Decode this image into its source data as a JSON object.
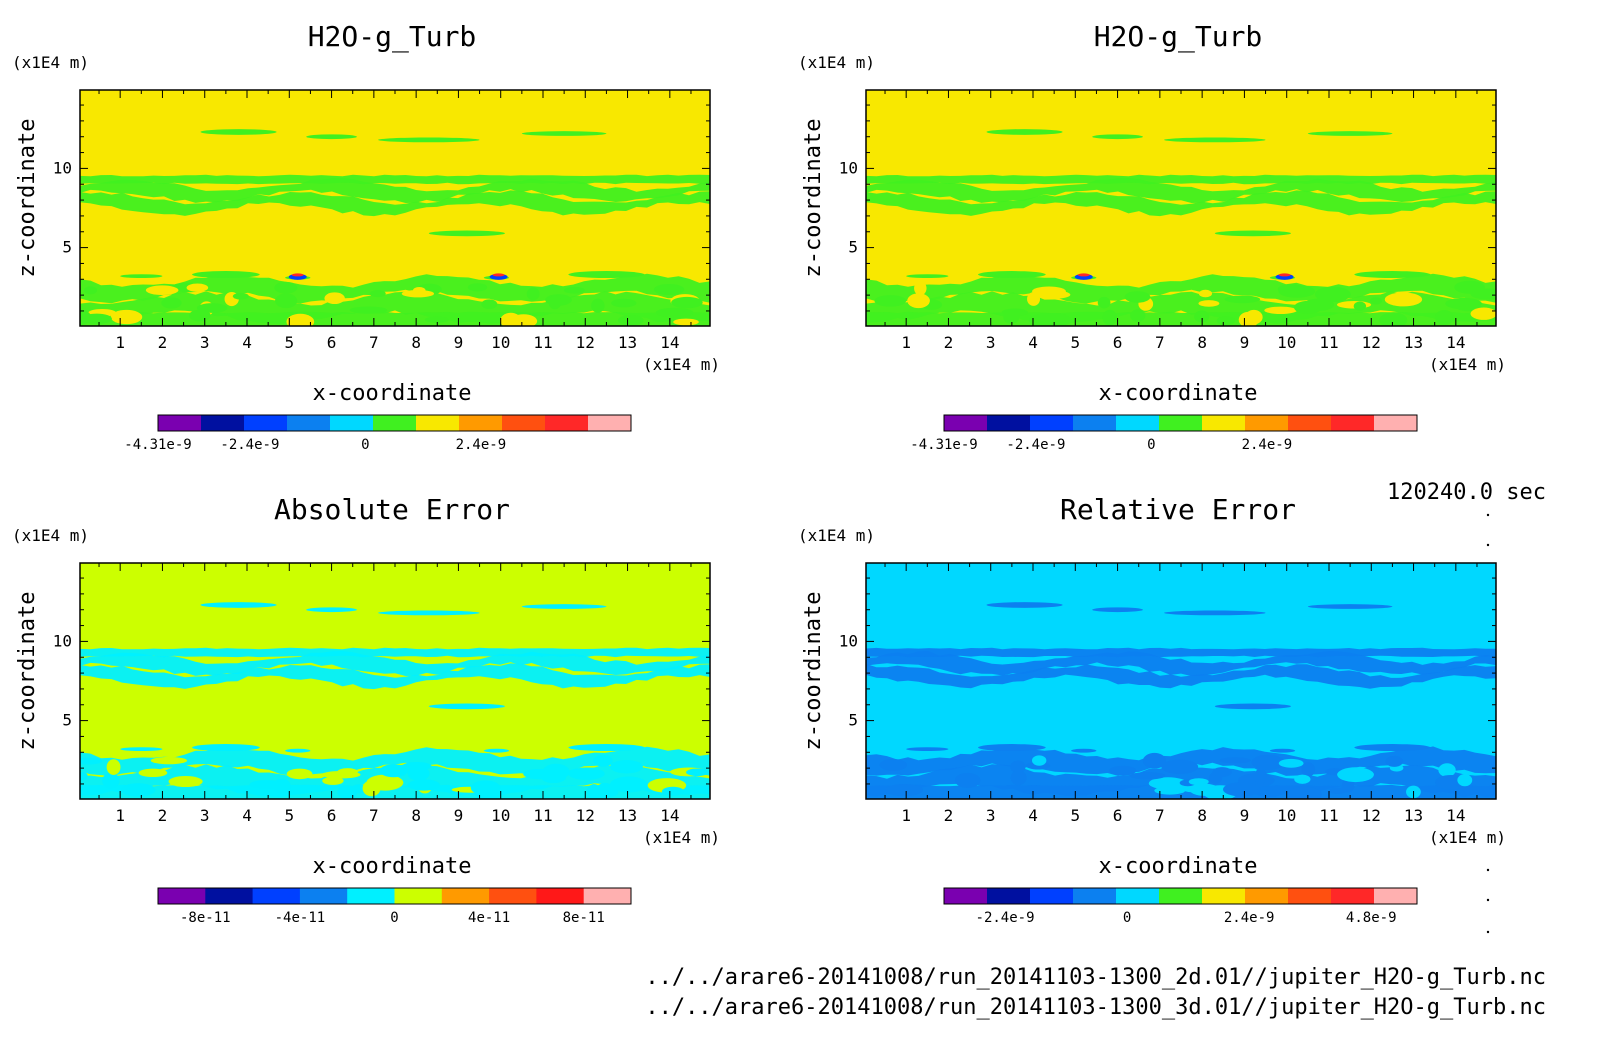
{
  "chart_data": [
    {
      "type": "heatmap",
      "title": "H2O-g_Turb",
      "xlabel": "x-coordinate",
      "ylabel": "z-coordinate",
      "x_unit": "(x1E4 m)",
      "y_unit": "(x1E4 m)",
      "xticks": [
        1,
        2,
        3,
        4,
        5,
        6,
        7,
        8,
        9,
        10,
        11,
        12,
        13,
        14
      ],
      "yticks": [
        5,
        10
      ],
      "xlim": [
        0.05,
        14.95
      ],
      "ylim": [
        0.05,
        14.95
      ],
      "background_level": "0",
      "colorbar": {
        "colors": [
          "#7a00b0",
          "#0010a0",
          "#0040ff",
          "#0c80f0",
          "#00d8ff",
          "#40f020",
          "#f8e800",
          "#ff9a00",
          "#ff5010",
          "#ff2828",
          "#ffb0b0"
        ],
        "tick_labels": [
          "-4.31e-9",
          "-2.4e-9",
          "0",
          "2.4e-9"
        ],
        "tick_values": [
          -4.31e-09,
          -2.4e-09,
          0,
          2.4e-09
        ],
        "vmin": -4.31e-09,
        "vmax": 5.52e-09
      }
    },
    {
      "type": "heatmap",
      "title": "H2O-g_Turb",
      "xlabel": "x-coordinate",
      "ylabel": "z-coordinate",
      "x_unit": "(x1E4 m)",
      "y_unit": "(x1E4 m)",
      "xticks": [
        1,
        2,
        3,
        4,
        5,
        6,
        7,
        8,
        9,
        10,
        11,
        12,
        13,
        14
      ],
      "yticks": [
        5,
        10
      ],
      "xlim": [
        0.05,
        14.95
      ],
      "ylim": [
        0.05,
        14.95
      ],
      "background_level": "0",
      "colorbar": {
        "colors": [
          "#7a00b0",
          "#0010a0",
          "#0040ff",
          "#0c80f0",
          "#00d8ff",
          "#40f020",
          "#f8e800",
          "#ff9a00",
          "#ff5010",
          "#ff2828",
          "#ffb0b0"
        ],
        "tick_labels": [
          "-4.31e-9",
          "-2.4e-9",
          "0",
          "2.4e-9"
        ],
        "tick_values": [
          -4.31e-09,
          -2.4e-09,
          0,
          2.4e-09
        ],
        "vmin": -4.31e-09,
        "vmax": 5.52e-09
      }
    },
    {
      "type": "heatmap",
      "title": "Absolute Error",
      "xlabel": "x-coordinate",
      "ylabel": "z-coordinate",
      "x_unit": "(x1E4 m)",
      "y_unit": "(x1E4 m)",
      "xticks": [
        1,
        2,
        3,
        4,
        5,
        6,
        7,
        8,
        9,
        10,
        11,
        12,
        13,
        14
      ],
      "yticks": [
        5,
        10
      ],
      "xlim": [
        0.05,
        14.95
      ],
      "ylim": [
        0.05,
        14.95
      ],
      "background_level": "0",
      "colorbar": {
        "colors": [
          "#7a00b0",
          "#0010a0",
          "#0040ff",
          "#0c80f0",
          "#00f0ff",
          "#ccff00",
          "#ff9a00",
          "#ff5010",
          "#ff1818",
          "#ffb0b0"
        ],
        "tick_labels": [
          "-8e-11",
          "-4e-11",
          "0",
          "4e-11",
          "8e-11"
        ],
        "tick_values": [
          -8e-11,
          -4e-11,
          0,
          4e-11,
          8e-11
        ],
        "vmin": -1e-10,
        "vmax": 1e-10
      }
    },
    {
      "type": "heatmap",
      "title": "Relative Error",
      "xlabel": "x-coordinate",
      "ylabel": "z-coordinate",
      "x_unit": "(x1E4 m)",
      "y_unit": "(x1E4 m)",
      "xticks": [
        1,
        2,
        3,
        4,
        5,
        6,
        7,
        8,
        9,
        10,
        11,
        12,
        13,
        14
      ],
      "yticks": [
        5,
        10
      ],
      "xlim": [
        0.05,
        14.95
      ],
      "ylim": [
        0.05,
        14.95
      ],
      "background_level": "0",
      "colorbar": {
        "colors": [
          "#7a00b0",
          "#0010a0",
          "#0040ff",
          "#0c80f0",
          "#00d8ff",
          "#40f020",
          "#f8e800",
          "#ff9a00",
          "#ff5010",
          "#ff2828",
          "#ffb0b0"
        ],
        "tick_labels": [
          "-2.4e-9",
          "0",
          "2.4e-9",
          "4.8e-9"
        ],
        "tick_values": [
          -2.4e-09,
          0,
          2.4e-09,
          4.8e-09
        ],
        "vmin": -3.6e-09,
        "vmax": 5.7e-09
      }
    }
  ],
  "time_label": "120240.0 sec",
  "file_paths": [
    "../../arare6-20141008/run_20141103-1300_2d.01//jupiter_H2O-g_Turb.nc",
    "../../arare6-20141008/run_20141103-1300_3d.01//jupiter_H2O-g_Turb.nc"
  ]
}
